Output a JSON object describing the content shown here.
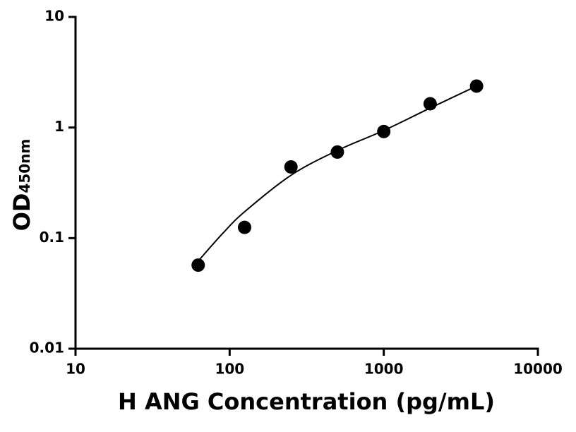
{
  "chart_data": {
    "type": "scatter",
    "x_label": "H ANG Concentration (pg/mL)",
    "y_label": "OD",
    "y_label_sub": "450nm",
    "x": [
      62.5,
      125,
      250,
      500,
      1000,
      2000,
      4000
    ],
    "series": [
      {
        "color": "#000000",
        "values": [
          0.057,
          0.125,
          0.44,
          0.6,
          0.92,
          1.64,
          2.37
        ]
      }
    ],
    "fit_curve": {
      "color": "#000000",
      "x": [
        62.5,
        90,
        125,
        250,
        500,
        1000,
        2000,
        4000
      ],
      "values": [
        0.062,
        0.11,
        0.173,
        0.37,
        0.62,
        0.94,
        1.5,
        2.37
      ]
    },
    "xlim": [
      10,
      10000
    ],
    "ylim": [
      0.01,
      10
    ],
    "xticks": [
      10,
      100,
      1000,
      10000
    ],
    "yticks": [
      0.01,
      0.1,
      1,
      10
    ],
    "xscale": "log",
    "yscale": "log"
  }
}
